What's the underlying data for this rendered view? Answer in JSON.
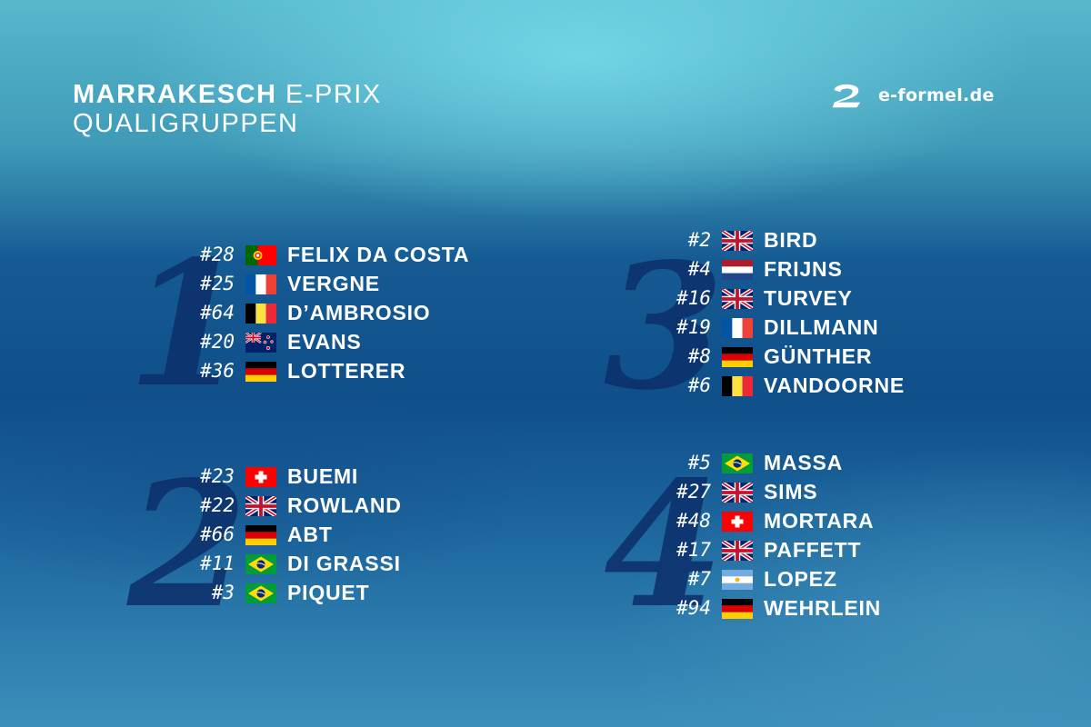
{
  "header": {
    "title_bold": "MARRAKESCH",
    "title_rest": "E-PRIX",
    "subtitle": "QUALIGRUPPEN",
    "logo_text": "e-formel.de"
  },
  "groups": [
    {
      "label": "1",
      "drivers": [
        {
          "number": "#28",
          "name": "FELIX DA COSTA",
          "flag": "portugal"
        },
        {
          "number": "#25",
          "name": "VERGNE",
          "flag": "france"
        },
        {
          "number": "#64",
          "name": "D’AMBROSIO",
          "flag": "belgium"
        },
        {
          "number": "#20",
          "name": "EVANS",
          "flag": "new-zealand"
        },
        {
          "number": "#36",
          "name": "LOTTERER",
          "flag": "germany"
        }
      ]
    },
    {
      "label": "2",
      "drivers": [
        {
          "number": "#23",
          "name": "BUEMI",
          "flag": "switzerland"
        },
        {
          "number": "#22",
          "name": "ROWLAND",
          "flag": "united-kingdom"
        },
        {
          "number": "#66",
          "name": "ABT",
          "flag": "germany"
        },
        {
          "number": "#11",
          "name": "DI GRASSI",
          "flag": "brazil"
        },
        {
          "number": "#3",
          "name": "PIQUET",
          "flag": "brazil"
        }
      ]
    },
    {
      "label": "3",
      "drivers": [
        {
          "number": "#2",
          "name": "BIRD",
          "flag": "united-kingdom"
        },
        {
          "number": "#4",
          "name": "FRIJNS",
          "flag": "netherlands"
        },
        {
          "number": "#16",
          "name": "TURVEY",
          "flag": "united-kingdom"
        },
        {
          "number": "#19",
          "name": "DILLMANN",
          "flag": "france"
        },
        {
          "number": "#8",
          "name": "GÜNTHER",
          "flag": "germany"
        },
        {
          "number": "#6",
          "name": "VANDOORNE",
          "flag": "belgium"
        }
      ]
    },
    {
      "label": "4",
      "drivers": [
        {
          "number": "#5",
          "name": "MASSA",
          "flag": "brazil"
        },
        {
          "number": "#27",
          "name": "SIMS",
          "flag": "united-kingdom"
        },
        {
          "number": "#48",
          "name": "MORTARA",
          "flag": "switzerland"
        },
        {
          "number": "#17",
          "name": "PAFFETT",
          "flag": "united-kingdom"
        },
        {
          "number": "#7",
          "name": "LOPEZ",
          "flag": "argentina"
        },
        {
          "number": "#94",
          "name": "WEHRLEIN",
          "flag": "germany"
        }
      ]
    }
  ]
}
